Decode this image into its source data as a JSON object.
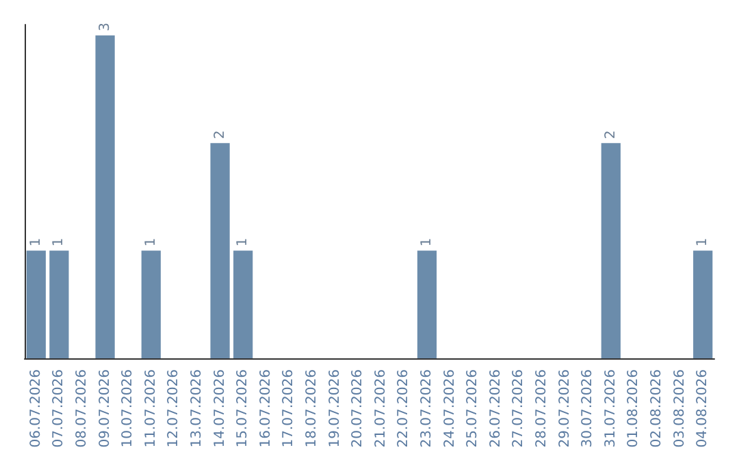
{
  "chart_data": {
    "type": "bar",
    "categories": [
      "06.07.2026",
      "07.07.2026",
      "08.07.2026",
      "09.07.2026",
      "10.07.2026",
      "11.07.2026",
      "12.07.2026",
      "13.07.2026",
      "14.07.2026",
      "15.07.2026",
      "16.07.2026",
      "17.07.2026",
      "18.07.2026",
      "19.07.2026",
      "20.07.2026",
      "21.07.2026",
      "22.07.2026",
      "23.07.2026",
      "24.07.2026",
      "25.07.2026",
      "26.07.2026",
      "27.07.2026",
      "28.07.2026",
      "29.07.2026",
      "30.07.2026",
      "31.07.2026",
      "01.08.2026",
      "02.08.2026",
      "03.08.2026",
      "04.08.2026"
    ],
    "values": [
      1,
      1,
      0,
      3,
      0,
      1,
      0,
      0,
      2,
      1,
      0,
      0,
      0,
      0,
      0,
      0,
      0,
      1,
      0,
      0,
      0,
      0,
      0,
      0,
      0,
      2,
      0,
      0,
      0,
      1
    ],
    "value_labels": [
      "1",
      "1",
      null,
      "3",
      null,
      "1",
      null,
      null,
      "2",
      "1",
      null,
      null,
      null,
      null,
      null,
      null,
      null,
      "1",
      null,
      null,
      null,
      null,
      null,
      null,
      null,
      "2",
      null,
      null,
      null,
      "1"
    ],
    "color": "#6b8cab",
    "ylim": [
      0,
      3.1
    ],
    "tick_labels": "x",
    "grid": false
  }
}
